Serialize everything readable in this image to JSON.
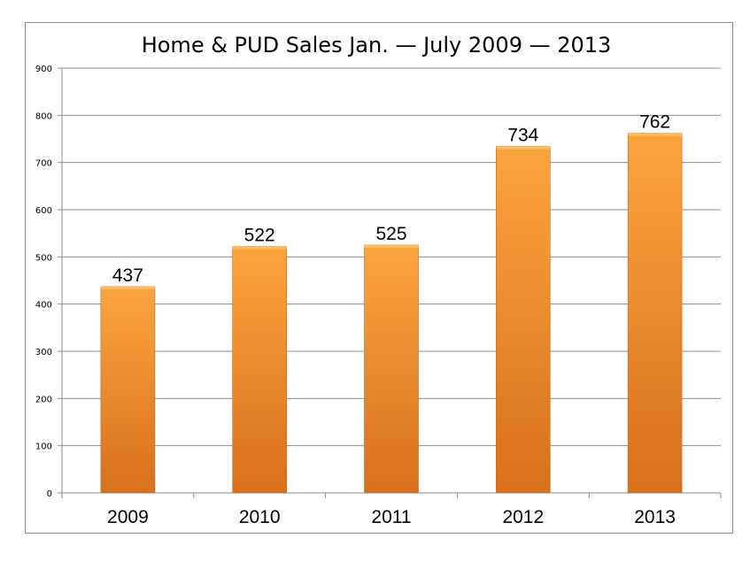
{
  "chart_data": {
    "type": "bar",
    "title": "Home & PUD Sales Jan. — July 2009 — 2013",
    "xlabel": "",
    "ylabel": "",
    "categories": [
      "2009",
      "2010",
      "2011",
      "2012",
      "2013"
    ],
    "values": [
      437,
      522,
      525,
      734,
      762
    ],
    "data_labels": [
      "437",
      "522",
      "525",
      "734",
      "762"
    ],
    "ylim": [
      0,
      900
    ],
    "yticks": [
      "0",
      "100",
      "200",
      "300",
      "400",
      "500",
      "600",
      "700",
      "800",
      "900"
    ],
    "grid": true,
    "legend": "none",
    "bar_color": "#f0892a",
    "bar_color_light": "#fba53f",
    "bar_color_dark": "#d8701c"
  }
}
